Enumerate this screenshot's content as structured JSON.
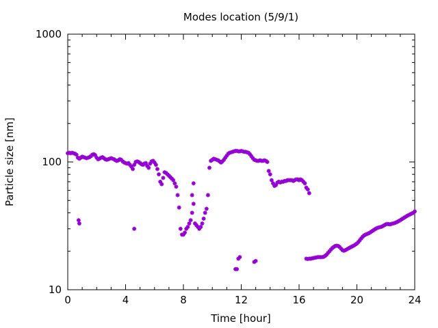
{
  "chart_data": {
    "type": "scatter",
    "title": "Modes location (5/9/1)",
    "xlabel": "Time [hour]",
    "ylabel": "Particle size [nm]",
    "xlim": [
      0,
      24
    ],
    "ylim": [
      10,
      1000
    ],
    "yscale": "log",
    "xticks": [
      0,
      4,
      8,
      12,
      16,
      20,
      24
    ],
    "yticks": [
      10,
      100,
      1000
    ],
    "marker_color": "#9400d3",
    "marker": "asterisk",
    "grid": false,
    "series": [
      {
        "points": [
          [
            0.0,
            117
          ],
          [
            0.1,
            118
          ],
          [
            0.2,
            117
          ],
          [
            0.3,
            118
          ],
          [
            0.4,
            117
          ],
          [
            0.5,
            116
          ],
          [
            0.6,
            114
          ],
          [
            0.7,
            108
          ],
          [
            0.8,
            106
          ],
          [
            0.9,
            108
          ],
          [
            1.0,
            110
          ],
          [
            1.1,
            109
          ],
          [
            1.2,
            108
          ],
          [
            1.3,
            107
          ],
          [
            1.4,
            108
          ],
          [
            1.5,
            109
          ],
          [
            1.6,
            111
          ],
          [
            1.7,
            114
          ],
          [
            1.8,
            115
          ],
          [
            1.9,
            113
          ],
          [
            2.0,
            108
          ],
          [
            2.1,
            105
          ],
          [
            2.2,
            106
          ],
          [
            2.3,
            108
          ],
          [
            2.4,
            109
          ],
          [
            2.5,
            107
          ],
          [
            2.6,
            105
          ],
          [
            2.7,
            104
          ],
          [
            2.8,
            105
          ],
          [
            2.9,
            106
          ],
          [
            3.0,
            107
          ],
          [
            3.1,
            106
          ],
          [
            3.2,
            105
          ],
          [
            3.3,
            103
          ],
          [
            3.4,
            102
          ],
          [
            3.5,
            103
          ],
          [
            3.6,
            105
          ],
          [
            3.7,
            104
          ],
          [
            3.8,
            101
          ],
          [
            3.9,
            99
          ],
          [
            4.0,
            98
          ],
          [
            4.1,
            97
          ],
          [
            4.2,
            98
          ],
          [
            4.3,
            95
          ],
          [
            4.4,
            92
          ],
          [
            4.5,
            88
          ],
          [
            4.6,
            95
          ],
          [
            4.7,
            100
          ],
          [
            4.8,
            101
          ],
          [
            4.9,
            100
          ],
          [
            5.0,
            98
          ],
          [
            5.1,
            96
          ],
          [
            5.2,
            95
          ],
          [
            5.3,
            97
          ],
          [
            5.4,
            98
          ],
          [
            5.5,
            93
          ],
          [
            5.6,
            90
          ],
          [
            5.7,
            97
          ],
          [
            5.8,
            101
          ],
          [
            5.9,
            102
          ],
          [
            6.0,
            99
          ],
          [
            6.1,
            95
          ],
          [
            6.2,
            88
          ],
          [
            6.3,
            80
          ],
          [
            6.4,
            70
          ],
          [
            6.5,
            67
          ],
          [
            6.6,
            75
          ],
          [
            6.7,
            83
          ],
          [
            6.8,
            82
          ],
          [
            6.9,
            80
          ],
          [
            7.0,
            78
          ],
          [
            7.1,
            76
          ],
          [
            7.2,
            74
          ],
          [
            7.3,
            72
          ],
          [
            7.4,
            68
          ],
          [
            7.5,
            64
          ],
          [
            7.6,
            55
          ],
          [
            7.7,
            44
          ],
          [
            7.8,
            30
          ],
          [
            7.9,
            27
          ],
          [
            8.0,
            27
          ],
          [
            8.1,
            28
          ],
          [
            8.2,
            30
          ],
          [
            8.3,
            31
          ],
          [
            8.4,
            33
          ],
          [
            8.5,
            35
          ],
          [
            8.6,
            40
          ],
          [
            8.7,
            47
          ],
          [
            8.8,
            33
          ],
          [
            8.9,
            32
          ],
          [
            9.0,
            31
          ],
          [
            9.1,
            30
          ],
          [
            9.2,
            31
          ],
          [
            9.3,
            33
          ],
          [
            9.4,
            36
          ],
          [
            9.5,
            40
          ],
          [
            9.6,
            43
          ],
          [
            9.7,
            55
          ],
          [
            9.8,
            90
          ],
          [
            9.9,
            102
          ],
          [
            10.0,
            104
          ],
          [
            10.1,
            106
          ],
          [
            10.2,
            105
          ],
          [
            10.3,
            104
          ],
          [
            10.4,
            103
          ],
          [
            10.5,
            101
          ],
          [
            10.6,
            99
          ],
          [
            10.7,
            101
          ],
          [
            10.8,
            104
          ],
          [
            10.9,
            108
          ],
          [
            11.0,
            112
          ],
          [
            11.1,
            116
          ],
          [
            11.2,
            118
          ],
          [
            11.3,
            119
          ],
          [
            11.4,
            120
          ],
          [
            11.5,
            121
          ],
          [
            11.6,
            122
          ],
          [
            11.7,
            122
          ],
          [
            11.8,
            121
          ],
          [
            11.9,
            121
          ],
          [
            12.0,
            122
          ],
          [
            12.1,
            121
          ],
          [
            12.2,
            120
          ],
          [
            12.3,
            120
          ],
          [
            12.4,
            119
          ],
          [
            12.5,
            118
          ],
          [
            12.6,
            115
          ],
          [
            12.7,
            111
          ],
          [
            12.8,
            107
          ],
          [
            12.9,
            104
          ],
          [
            13.0,
            103
          ],
          [
            13.1,
            102
          ],
          [
            13.2,
            102
          ],
          [
            13.3,
            103
          ],
          [
            13.4,
            102
          ],
          [
            13.5,
            102
          ],
          [
            13.6,
            103
          ],
          [
            13.7,
            102
          ],
          [
            13.8,
            100
          ],
          [
            13.9,
            85
          ],
          [
            14.0,
            80
          ],
          [
            14.1,
            72
          ],
          [
            14.2,
            68
          ],
          [
            14.3,
            65
          ],
          [
            14.4,
            66
          ],
          [
            14.5,
            69
          ],
          [
            14.6,
            70
          ],
          [
            14.7,
            69
          ],
          [
            14.8,
            70
          ],
          [
            14.9,
            70
          ],
          [
            15.0,
            71
          ],
          [
            15.1,
            71
          ],
          [
            15.2,
            72
          ],
          [
            15.3,
            72
          ],
          [
            15.4,
            72
          ],
          [
            15.5,
            72
          ],
          [
            15.6,
            71
          ],
          [
            15.7,
            72
          ],
          [
            15.8,
            73
          ],
          [
            15.9,
            73
          ],
          [
            16.0,
            72
          ],
          [
            16.1,
            73
          ],
          [
            16.2,
            72
          ],
          [
            16.3,
            70
          ],
          [
            16.4,
            68
          ],
          [
            16.5,
            63
          ],
          [
            16.6,
            61
          ],
          [
            16.7,
            57
          ],
          [
            0.75,
            35
          ],
          [
            0.8,
            33
          ],
          [
            4.6,
            30
          ],
          [
            8.6,
            55
          ],
          [
            8.7,
            68
          ],
          [
            11.6,
            14.5
          ],
          [
            11.7,
            14.5
          ],
          [
            11.8,
            17.5
          ],
          [
            11.9,
            18
          ],
          [
            12.9,
            16.5
          ],
          [
            13.0,
            16.8
          ],
          [
            16.5,
            17.5
          ],
          [
            16.6,
            17.4
          ],
          [
            16.7,
            17.5
          ],
          [
            16.8,
            17.5
          ],
          [
            16.9,
            17.6
          ],
          [
            17.0,
            17.7
          ],
          [
            17.1,
            17.8
          ],
          [
            17.2,
            17.9
          ],
          [
            17.3,
            18.0
          ],
          [
            17.4,
            18.0
          ],
          [
            17.5,
            18.0
          ],
          [
            17.6,
            18.0
          ],
          [
            17.7,
            18.1
          ],
          [
            17.8,
            18.4
          ],
          [
            17.9,
            18.8
          ],
          [
            18.0,
            19.4
          ],
          [
            18.1,
            20.0
          ],
          [
            18.2,
            20.6
          ],
          [
            18.3,
            21.2
          ],
          [
            18.4,
            21.6
          ],
          [
            18.5,
            22.0
          ],
          [
            18.6,
            22.1
          ],
          [
            18.7,
            22.0
          ],
          [
            18.8,
            21.6
          ],
          [
            18.9,
            21.0
          ],
          [
            19.0,
            20.4
          ],
          [
            19.1,
            20.2
          ],
          [
            19.2,
            20.4
          ],
          [
            19.3,
            20.7
          ],
          [
            19.4,
            21.0
          ],
          [
            19.5,
            21.3
          ],
          [
            19.6,
            21.6
          ],
          [
            19.7,
            21.9
          ],
          [
            19.8,
            22.2
          ],
          [
            19.9,
            22.6
          ],
          [
            20.0,
            23.0
          ],
          [
            20.1,
            23.6
          ],
          [
            20.2,
            24.4
          ],
          [
            20.3,
            25.2
          ],
          [
            20.4,
            26.0
          ],
          [
            20.5,
            26.6
          ],
          [
            20.6,
            27.0
          ],
          [
            20.7,
            27.3
          ],
          [
            20.8,
            27.6
          ],
          [
            20.9,
            28.0
          ],
          [
            21.0,
            28.5
          ],
          [
            21.1,
            29.0
          ],
          [
            21.2,
            29.5
          ],
          [
            21.3,
            30.0
          ],
          [
            21.4,
            30.4
          ],
          [
            21.5,
            30.7
          ],
          [
            21.6,
            30.9
          ],
          [
            21.7,
            31.1
          ],
          [
            21.8,
            31.5
          ],
          [
            21.9,
            32.0
          ],
          [
            22.0,
            32.5
          ],
          [
            22.1,
            32.7
          ],
          [
            22.2,
            32.6
          ],
          [
            22.3,
            32.5
          ],
          [
            22.4,
            32.8
          ],
          [
            22.5,
            33.0
          ],
          [
            22.6,
            33.2
          ],
          [
            22.7,
            33.6
          ],
          [
            22.8,
            34.0
          ],
          [
            22.9,
            34.5
          ],
          [
            23.0,
            35.0
          ],
          [
            23.1,
            35.6
          ],
          [
            23.2,
            36.2
          ],
          [
            23.3,
            36.8
          ],
          [
            23.4,
            37.4
          ],
          [
            23.5,
            38.0
          ],
          [
            23.6,
            38.5
          ],
          [
            23.7,
            39.0
          ],
          [
            23.8,
            39.5
          ],
          [
            23.9,
            40.0
          ],
          [
            24.0,
            41.0
          ]
        ]
      }
    ]
  }
}
